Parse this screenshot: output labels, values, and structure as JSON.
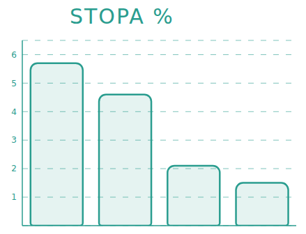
{
  "chart_data": {
    "type": "bar",
    "title": "STOPA %",
    "categories": [
      null,
      null,
      null,
      null
    ],
    "values": [
      5.7,
      4.6,
      2.1,
      1.5
    ],
    "color": "#2a9d8f",
    "ylim": [
      0,
      6.5
    ],
    "yticks": [
      1,
      2,
      3,
      4,
      5,
      6
    ],
    "grid": true,
    "tick_labels": "y"
  }
}
